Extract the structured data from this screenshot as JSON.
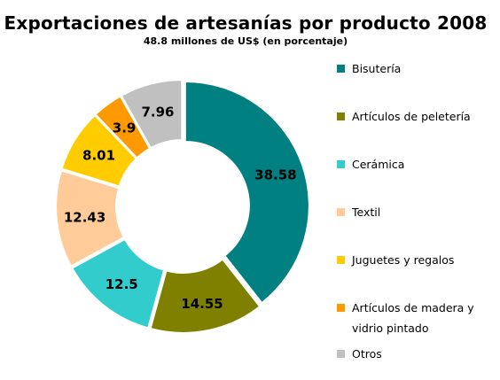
{
  "chart_data": {
    "type": "pie",
    "variant": "donut",
    "title": "Exportaciones de artesanías por producto 2008",
    "subtitle": "48.8 millones de US$ (en porcentaje)",
    "legend_position": "right",
    "slices": [
      {
        "name": "Bisutería",
        "value": 38.58,
        "label": "38.58",
        "color": "#008080"
      },
      {
        "name": "Artículos de peletería",
        "value": 14.55,
        "label": "14.55",
        "color": "#808000"
      },
      {
        "name": "Cerámica",
        "value": 12.5,
        "label": "12.5",
        "color": "#33CCCC"
      },
      {
        "name": "Textil",
        "value": 12.43,
        "label": "12.43",
        "color": "#FFCC99"
      },
      {
        "name": "Juguetes y regalos",
        "value": 8.01,
        "label": "8.01",
        "color": "#FFCC00"
      },
      {
        "name": "Artículos de madera y vidrio pintado",
        "value": 3.9,
        "label": "3.9",
        "color": "#FF9900"
      },
      {
        "name": "Otros",
        "value": 7.96,
        "label": "7.96",
        "color": "#C0C0C0"
      }
    ]
  }
}
